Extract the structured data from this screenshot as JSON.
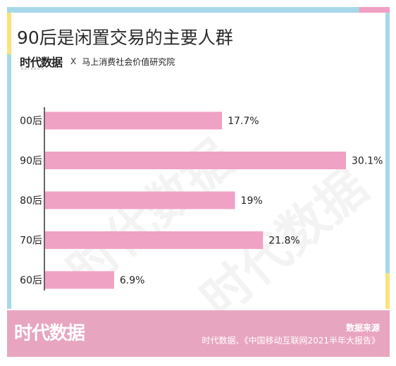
{
  "title": "90后是闲置交易的主要人群",
  "brand": {
    "logo": "时代数据",
    "logo_sub": "DATAGOO",
    "x_mark": "X",
    "partner": "马上消费社会价值研究院"
  },
  "watermark": "时代数据",
  "footer": {
    "logo": "时代数据",
    "source_label": "数据来源",
    "source_text": "时代数据、《中国移动互联网2021半年大报告》"
  },
  "colors": {
    "bar": "#f0a2c4",
    "footer": "#e8a5c0",
    "frame_blue": "#a7d8ea",
    "frame_yellow": "#fbe27a"
  },
  "chart_data": {
    "type": "bar",
    "orientation": "horizontal",
    "categories": [
      "00后",
      "90后",
      "80后",
      "70后",
      "60后"
    ],
    "values": [
      17.7,
      30.1,
      19,
      21.8,
      6.9
    ],
    "value_labels": [
      "17.7%",
      "30.1%",
      "19%",
      "21.8%",
      "6.9%"
    ],
    "unit": "%",
    "xlim": [
      0,
      30.1
    ],
    "grid": false,
    "legend": "none"
  }
}
